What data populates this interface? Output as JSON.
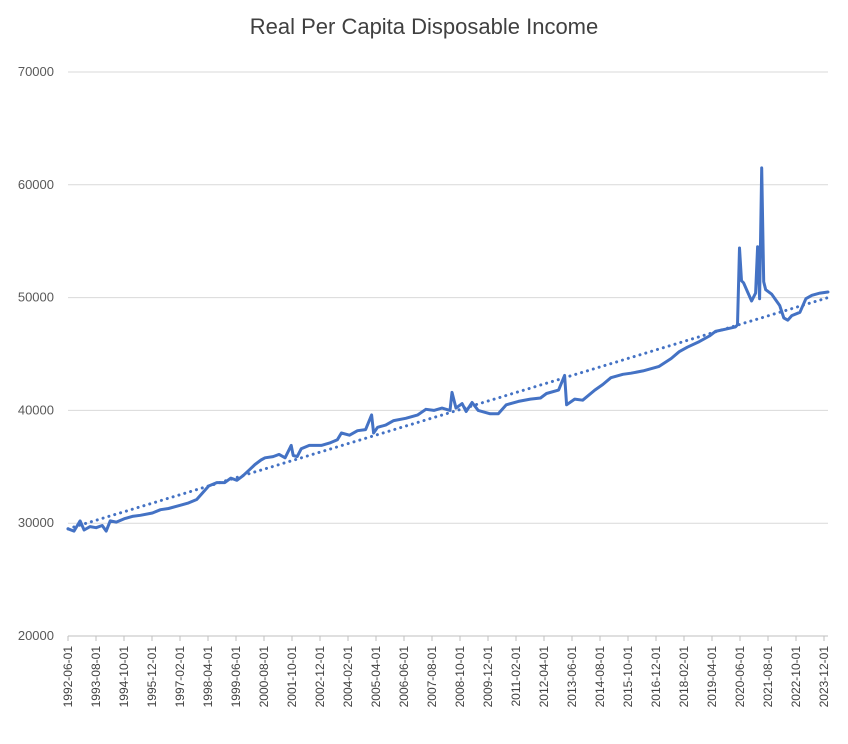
{
  "chart_data": {
    "type": "line",
    "title": "Real Per Capita Disposable Income",
    "xlabel": "",
    "ylabel": "",
    "ylim": [
      20000,
      70000
    ],
    "y_ticks": [
      20000,
      30000,
      40000,
      50000,
      60000,
      70000
    ],
    "x_tick_labels": [
      "1992-06-01",
      "1993-08-01",
      "1994-10-01",
      "1995-12-01",
      "1997-02-01",
      "1998-04-01",
      "1999-06-01",
      "2000-08-01",
      "2001-10-01",
      "2002-12-01",
      "2004-02-01",
      "2005-04-01",
      "2006-06-01",
      "2007-08-01",
      "2008-10-01",
      "2009-12-01",
      "2011-02-01",
      "2012-04-01",
      "2013-06-01",
      "2014-08-01",
      "2015-10-01",
      "2016-12-01",
      "2018-02-01",
      "2019-04-01",
      "2020-06-01",
      "2021-08-01",
      "2022-10-01",
      "2023-12-01"
    ],
    "grid": true,
    "legend": "none",
    "series": [
      {
        "style": "solid",
        "color": "#4472C4",
        "points": [
          [
            "1992-06",
            29500
          ],
          [
            "1992-09",
            29300
          ],
          [
            "1992-12",
            30200
          ],
          [
            "1993-02",
            29400
          ],
          [
            "1993-05",
            29700
          ],
          [
            "1993-08",
            29600
          ],
          [
            "1993-11",
            29800
          ],
          [
            "1994-01",
            29300
          ],
          [
            "1994-03",
            30200
          ],
          [
            "1994-06",
            30100
          ],
          [
            "1994-10",
            30400
          ],
          [
            "1995-02",
            30600
          ],
          [
            "1995-06",
            30700
          ],
          [
            "1995-12",
            30900
          ],
          [
            "1996-04",
            31200
          ],
          [
            "1996-08",
            31300
          ],
          [
            "1997-02",
            31600
          ],
          [
            "1997-06",
            31800
          ],
          [
            "1997-10",
            32100
          ],
          [
            "1998-01",
            32700
          ],
          [
            "1998-04",
            33300
          ],
          [
            "1998-08",
            33600
          ],
          [
            "1998-12",
            33600
          ],
          [
            "1999-03",
            34000
          ],
          [
            "1999-06",
            33800
          ],
          [
            "1999-09",
            34200
          ],
          [
            "1999-12",
            34700
          ],
          [
            "2000-03",
            35200
          ],
          [
            "2000-06",
            35600
          ],
          [
            "2000-08",
            35800
          ],
          [
            "2000-12",
            35900
          ],
          [
            "2001-03",
            36100
          ],
          [
            "2001-06",
            35800
          ],
          [
            "2001-09",
            36900
          ],
          [
            "2001-10",
            36000
          ],
          [
            "2001-12",
            35900
          ],
          [
            "2002-02",
            36600
          ],
          [
            "2002-06",
            36900
          ],
          [
            "2002-12",
            36900
          ],
          [
            "2003-04",
            37100
          ],
          [
            "2003-08",
            37400
          ],
          [
            "2003-10",
            38000
          ],
          [
            "2004-02",
            37800
          ],
          [
            "2004-06",
            38200
          ],
          [
            "2004-10",
            38300
          ],
          [
            "2005-01",
            39600
          ],
          [
            "2005-02",
            38000
          ],
          [
            "2005-04",
            38500
          ],
          [
            "2005-08",
            38700
          ],
          [
            "2005-12",
            39100
          ],
          [
            "2006-06",
            39300
          ],
          [
            "2006-12",
            39600
          ],
          [
            "2007-04",
            40100
          ],
          [
            "2007-08",
            40000
          ],
          [
            "2007-12",
            40200
          ],
          [
            "2008-04",
            40000
          ],
          [
            "2008-05",
            41600
          ],
          [
            "2008-07",
            40200
          ],
          [
            "2008-10",
            40600
          ],
          [
            "2008-12",
            39900
          ],
          [
            "2009-03",
            40700
          ],
          [
            "2009-06",
            40000
          ],
          [
            "2009-12",
            39700
          ],
          [
            "2010-04",
            39700
          ],
          [
            "2010-08",
            40500
          ],
          [
            "2011-02",
            40800
          ],
          [
            "2011-08",
            41000
          ],
          [
            "2012-01",
            41100
          ],
          [
            "2012-04",
            41500
          ],
          [
            "2012-10",
            41800
          ],
          [
            "2013-01",
            43100
          ],
          [
            "2013-02",
            40500
          ],
          [
            "2013-06",
            41000
          ],
          [
            "2013-10",
            40900
          ],
          [
            "2014-04",
            41800
          ],
          [
            "2014-08",
            42300
          ],
          [
            "2014-12",
            42900
          ],
          [
            "2015-06",
            43200
          ],
          [
            "2015-10",
            43300
          ],
          [
            "2016-04",
            43500
          ],
          [
            "2016-12",
            43900
          ],
          [
            "2017-06",
            44600
          ],
          [
            "2017-10",
            45200
          ],
          [
            "2018-02",
            45600
          ],
          [
            "2018-08",
            46100
          ],
          [
            "2019-01",
            46600
          ],
          [
            "2019-04",
            47000
          ],
          [
            "2019-09",
            47200
          ],
          [
            "2020-02",
            47400
          ],
          [
            "2020-03",
            47600
          ],
          [
            "2020-04",
            54400
          ],
          [
            "2020-05",
            51500
          ],
          [
            "2020-06",
            51300
          ],
          [
            "2020-08",
            50500
          ],
          [
            "2020-10",
            49700
          ],
          [
            "2020-12",
            50400
          ],
          [
            "2021-01",
            54500
          ],
          [
            "2021-02",
            49900
          ],
          [
            "2021-03",
            61500
          ],
          [
            "2021-04",
            51400
          ],
          [
            "2021-05",
            50700
          ],
          [
            "2021-08",
            50300
          ],
          [
            "2021-10",
            49800
          ],
          [
            "2021-12",
            49300
          ],
          [
            "2022-02",
            48200
          ],
          [
            "2022-04",
            48000
          ],
          [
            "2022-06",
            48400
          ],
          [
            "2022-10",
            48700
          ],
          [
            "2023-01",
            49900
          ],
          [
            "2023-04",
            50200
          ],
          [
            "2023-08",
            50400
          ],
          [
            "2023-12",
            50500
          ]
        ]
      },
      {
        "style": "dotted-trendline",
        "color": "#4472C4",
        "points": [
          [
            "1992-06",
            29500
          ],
          [
            "2023-12",
            50000
          ]
        ]
      }
    ]
  }
}
